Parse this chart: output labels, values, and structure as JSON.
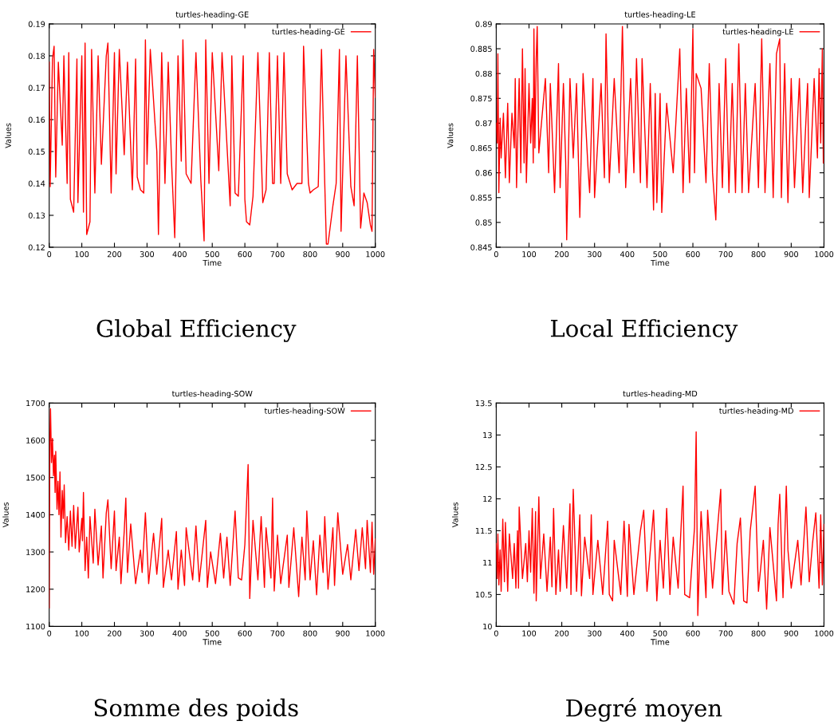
{
  "chart_data": [
    {
      "type": "line",
      "title": "turtles-heading-GE",
      "xlabel": "Time",
      "ylabel": "Values",
      "annotations": [
        "Global Efficiency"
      ],
      "legend": "top right",
      "grid": false,
      "xlim": [
        0,
        1000
      ],
      "xticks": [
        0,
        100,
        200,
        300,
        400,
        500,
        600,
        700,
        800,
        900,
        1000
      ],
      "ylim": [
        0.12,
        0.19
      ],
      "yticks": [
        0.12,
        0.13,
        0.14,
        0.15,
        0.16,
        0.17,
        0.18,
        0.19
      ],
      "series": [
        {
          "name": "turtles-heading-GE",
          "color": "#ff0000",
          "x": [
            0,
            3,
            10,
            15,
            20,
            28,
            40,
            45,
            55,
            60,
            65,
            75,
            85,
            88,
            100,
            105,
            110,
            115,
            125,
            130,
            140,
            150,
            160,
            175,
            180,
            190,
            200,
            205,
            215,
            230,
            240,
            255,
            265,
            270,
            280,
            290,
            295,
            300,
            310,
            330,
            335,
            345,
            355,
            365,
            375,
            385,
            395,
            405,
            410,
            420,
            435,
            450,
            465,
            475,
            480,
            490,
            500,
            520,
            530,
            555,
            560,
            570,
            580,
            595,
            600,
            605,
            615,
            625,
            640,
            655,
            665,
            675,
            685,
            690,
            700,
            710,
            720,
            730,
            745,
            760,
            775,
            780,
            795,
            800,
            810,
            825,
            835,
            845,
            850,
            855,
            870,
            880,
            890,
            895,
            910,
            925,
            935,
            945,
            955,
            965,
            975,
            985,
            990,
            995,
            1000
          ],
          "values": [
            0.178,
            0.139,
            0.179,
            0.183,
            0.142,
            0.178,
            0.152,
            0.18,
            0.14,
            0.181,
            0.135,
            0.131,
            0.179,
            0.134,
            0.18,
            0.131,
            0.184,
            0.124,
            0.128,
            0.182,
            0.137,
            0.18,
            0.146,
            0.18,
            0.184,
            0.137,
            0.181,
            0.143,
            0.182,
            0.149,
            0.178,
            0.138,
            0.179,
            0.142,
            0.138,
            0.137,
            0.185,
            0.146,
            0.182,
            0.15,
            0.124,
            0.181,
            0.14,
            0.178,
            0.147,
            0.123,
            0.18,
            0.147,
            0.185,
            0.143,
            0.14,
            0.181,
            0.141,
            0.122,
            0.185,
            0.14,
            0.181,
            0.144,
            0.181,
            0.133,
            0.18,
            0.137,
            0.136,
            0.18,
            0.135,
            0.128,
            0.127,
            0.136,
            0.181,
            0.134,
            0.138,
            0.181,
            0.14,
            0.14,
            0.18,
            0.14,
            0.181,
            0.143,
            0.138,
            0.14,
            0.14,
            0.183,
            0.14,
            0.137,
            0.138,
            0.139,
            0.182,
            0.14,
            0.121,
            0.121,
            0.133,
            0.14,
            0.182,
            0.125,
            0.18,
            0.139,
            0.133,
            0.18,
            0.126,
            0.137,
            0.134,
            0.127,
            0.125,
            0.182,
            0.167
          ]
        }
      ]
    },
    {
      "type": "line",
      "title": "turtles-heading-LE",
      "xlabel": "Time",
      "ylabel": "Values",
      "annotations": [
        "Local Efficiency"
      ],
      "legend": "top right",
      "grid": false,
      "xlim": [
        0,
        1000
      ],
      "xticks": [
        0,
        100,
        200,
        300,
        400,
        500,
        600,
        700,
        800,
        900,
        1000
      ],
      "ylim": [
        0.845,
        0.89
      ],
      "yticks": [
        0.845,
        0.85,
        0.855,
        0.86,
        0.865,
        0.87,
        0.875,
        0.88,
        0.885,
        0.89
      ],
      "series": [
        {
          "name": "turtles-heading-LE",
          "color": "#ff0000",
          "x": [
            0,
            3,
            5,
            8,
            12,
            15,
            22,
            28,
            35,
            40,
            48,
            55,
            58,
            62,
            70,
            75,
            80,
            85,
            88,
            92,
            100,
            105,
            110,
            113,
            115,
            118,
            122,
            125,
            130,
            150,
            160,
            165,
            178,
            190,
            195,
            205,
            212,
            215,
            225,
            235,
            245,
            255,
            265,
            280,
            285,
            295,
            300,
            320,
            330,
            335,
            345,
            360,
            375,
            385,
            395,
            410,
            420,
            428,
            440,
            445,
            460,
            470,
            480,
            485,
            490,
            500,
            505,
            520,
            540,
            560,
            570,
            580,
            590,
            600,
            605,
            610,
            625,
            640,
            650,
            660,
            670,
            680,
            690,
            700,
            710,
            720,
            730,
            740,
            750,
            760,
            770,
            790,
            800,
            810,
            820,
            835,
            845,
            855,
            865,
            870,
            880,
            890,
            900,
            910,
            925,
            935,
            950,
            955,
            970,
            980,
            985,
            990,
            995,
            998
          ],
          "values": [
            0.87,
            0.866,
            0.884,
            0.856,
            0.871,
            0.863,
            0.872,
            0.859,
            0.874,
            0.858,
            0.872,
            0.865,
            0.879,
            0.857,
            0.879,
            0.86,
            0.885,
            0.862,
            0.881,
            0.858,
            0.878,
            0.866,
            0.875,
            0.862,
            0.889,
            0.865,
            0.883,
            0.8895,
            0.864,
            0.879,
            0.86,
            0.878,
            0.856,
            0.882,
            0.857,
            0.878,
            0.862,
            0.8465,
            0.879,
            0.863,
            0.878,
            0.851,
            0.88,
            0.861,
            0.856,
            0.879,
            0.855,
            0.878,
            0.859,
            0.888,
            0.858,
            0.879,
            0.86,
            0.8895,
            0.857,
            0.879,
            0.86,
            0.883,
            0.858,
            0.883,
            0.857,
            0.878,
            0.8525,
            0.876,
            0.854,
            0.876,
            0.852,
            0.874,
            0.86,
            0.885,
            0.856,
            0.877,
            0.858,
            0.889,
            0.86,
            0.88,
            0.877,
            0.858,
            0.882,
            0.86,
            0.8505,
            0.878,
            0.857,
            0.883,
            0.856,
            0.878,
            0.856,
            0.886,
            0.856,
            0.878,
            0.856,
            0.878,
            0.857,
            0.887,
            0.856,
            0.882,
            0.855,
            0.884,
            0.887,
            0.855,
            0.882,
            0.854,
            0.879,
            0.857,
            0.879,
            0.856,
            0.878,
            0.855,
            0.879,
            0.863,
            0.881,
            0.866,
            0.885,
            0.862
          ]
        }
      ]
    },
    {
      "type": "line",
      "title": "turtles-heading-SOW",
      "xlabel": "Time",
      "ylabel": "Values",
      "annotations": [
        "Somme des poids"
      ],
      "legend": "top right",
      "grid": false,
      "xlim": [
        0,
        1000
      ],
      "xticks": [
        0,
        100,
        200,
        300,
        400,
        500,
        600,
        700,
        800,
        900,
        1000
      ],
      "ylim": [
        1100,
        1700
      ],
      "yticks": [
        1100,
        1200,
        1300,
        1400,
        1500,
        1600,
        1700
      ],
      "series": [
        {
          "name": "turtles-heading-SOW",
          "color": "#ff0000",
          "x": [
            0,
            2,
            4,
            7,
            10,
            13,
            16,
            18,
            20,
            24,
            27,
            30,
            33,
            36,
            40,
            43,
            46,
            50,
            55,
            60,
            65,
            70,
            75,
            80,
            88,
            92,
            100,
            102,
            105,
            110,
            115,
            120,
            125,
            135,
            140,
            150,
            160,
            165,
            175,
            180,
            190,
            200,
            205,
            215,
            220,
            230,
            235,
            240,
            250,
            265,
            280,
            285,
            295,
            305,
            320,
            330,
            345,
            350,
            365,
            375,
            390,
            395,
            405,
            415,
            420,
            440,
            450,
            460,
            480,
            485,
            495,
            510,
            525,
            535,
            545,
            555,
            570,
            580,
            590,
            600,
            610,
            615,
            625,
            640,
            650,
            660,
            665,
            680,
            685,
            690,
            700,
            710,
            730,
            735,
            750,
            765,
            775,
            785,
            790,
            800,
            810,
            820,
            830,
            840,
            845,
            855,
            870,
            875,
            885,
            900,
            915,
            925,
            940,
            950,
            960,
            970,
            975,
            985,
            990,
            995,
            1000
          ],
          "values": [
            1150,
            1600,
            1685,
            1540,
            1605,
            1505,
            1560,
            1460,
            1570,
            1415,
            1490,
            1400,
            1515,
            1340,
            1465,
            1390,
            1480,
            1325,
            1395,
            1305,
            1410,
            1315,
            1425,
            1310,
            1420,
            1300,
            1390,
            1330,
            1460,
            1250,
            1340,
            1230,
            1395,
            1270,
            1415,
            1265,
            1370,
            1230,
            1405,
            1440,
            1255,
            1410,
            1250,
            1340,
            1215,
            1355,
            1445,
            1245,
            1375,
            1215,
            1305,
            1245,
            1405,
            1215,
            1350,
            1240,
            1390,
            1205,
            1305,
            1225,
            1355,
            1200,
            1305,
            1210,
            1365,
            1225,
            1370,
            1220,
            1385,
            1205,
            1300,
            1215,
            1350,
            1230,
            1340,
            1210,
            1410,
            1230,
            1225,
            1320,
            1535,
            1175,
            1385,
            1225,
            1395,
            1205,
            1365,
            1230,
            1445,
            1195,
            1345,
            1215,
            1345,
            1205,
            1365,
            1180,
            1340,
            1225,
            1410,
            1225,
            1330,
            1185,
            1345,
            1245,
            1395,
            1200,
            1365,
            1210,
            1405,
            1240,
            1320,
            1225,
            1360,
            1250,
            1365,
            1255,
            1385,
            1245,
            1380,
            1240,
            1335
          ]
        }
      ]
    },
    {
      "type": "line",
      "title": "turtles-heading-MD",
      "xlabel": "Time",
      "ylabel": "Values",
      "annotations": [
        "Degré moyen"
      ],
      "legend": "top right",
      "grid": false,
      "xlim": [
        0,
        1000
      ],
      "xticks": [
        0,
        100,
        200,
        300,
        400,
        500,
        600,
        700,
        800,
        900,
        1000
      ],
      "ylim": [
        10,
        13.5
      ],
      "yticks": [
        10,
        10.5,
        11,
        11.5,
        12,
        12.5,
        13,
        13.5
      ],
      "series": [
        {
          "name": "turtles-heading-MD",
          "color": "#ff0000",
          "x": [
            0,
            3,
            5,
            8,
            12,
            15,
            20,
            25,
            28,
            35,
            40,
            50,
            55,
            60,
            65,
            68,
            70,
            80,
            90,
            95,
            100,
            105,
            110,
            115,
            120,
            122,
            130,
            135,
            145,
            155,
            165,
            170,
            175,
            182,
            190,
            195,
            205,
            215,
            225,
            228,
            235,
            245,
            255,
            260,
            270,
            285,
            290,
            295,
            310,
            325,
            340,
            345,
            355,
            360,
            380,
            390,
            400,
            405,
            420,
            440,
            450,
            460,
            480,
            490,
            500,
            510,
            520,
            530,
            540,
            555,
            570,
            575,
            590,
            605,
            610,
            615,
            625,
            640,
            645,
            660,
            685,
            690,
            700,
            710,
            725,
            735,
            745,
            755,
            765,
            775,
            790,
            800,
            815,
            825,
            835,
            855,
            860,
            865,
            875,
            885,
            890,
            900,
            920,
            930,
            945,
            955,
            965,
            975,
            985,
            990,
            995,
            1000
          ],
          "values": [
            11.3,
            10.75,
            11.45,
            10.65,
            11.2,
            10.55,
            11.68,
            10.7,
            11.63,
            10.55,
            11.45,
            10.75,
            11.3,
            10.6,
            11.5,
            10.6,
            11.87,
            10.75,
            11.3,
            10.7,
            11.5,
            10.85,
            11.85,
            10.52,
            11.8,
            10.4,
            12.03,
            10.75,
            11.45,
            10.55,
            11.4,
            10.62,
            11.85,
            10.5,
            11.2,
            10.55,
            11.58,
            10.6,
            11.92,
            10.5,
            12.15,
            10.55,
            11.75,
            10.48,
            11.4,
            10.75,
            11.75,
            10.5,
            11.35,
            10.5,
            11.65,
            10.5,
            10.4,
            11.35,
            10.5,
            11.65,
            10.47,
            11.6,
            10.5,
            11.5,
            11.82,
            10.55,
            11.82,
            10.4,
            11.35,
            10.6,
            11.85,
            10.5,
            11.4,
            10.6,
            12.2,
            10.5,
            10.45,
            11.55,
            13.05,
            10.17,
            11.8,
            10.45,
            11.82,
            10.6,
            12.15,
            10.5,
            11.5,
            10.55,
            10.35,
            11.3,
            11.7,
            10.4,
            10.37,
            11.5,
            12.2,
            10.55,
            11.35,
            10.27,
            11.55,
            10.4,
            11.6,
            12.07,
            10.45,
            12.2,
            11.2,
            10.6,
            11.35,
            10.65,
            11.87,
            10.7,
            11.3,
            11.78,
            10.6,
            11.75,
            10.65,
            11.6
          ]
        }
      ]
    }
  ]
}
